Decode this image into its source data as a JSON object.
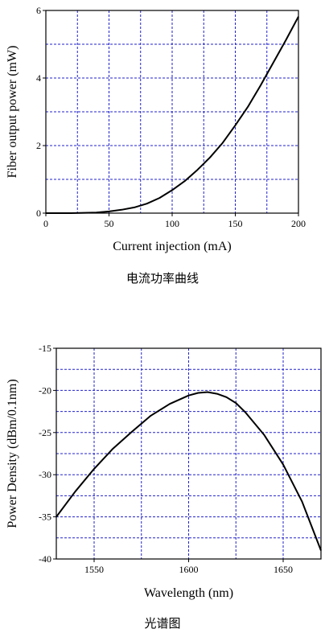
{
  "chart_data": [
    {
      "type": "line",
      "caption": "电流功率曲线",
      "xlabel": "Current injection (mA)",
      "ylabel": "Fiber output power (mW)",
      "xlim": [
        0,
        200
      ],
      "ylim": [
        0,
        6
      ],
      "xticks": [
        0,
        50,
        100,
        150,
        200
      ],
      "yticks": [
        0,
        2,
        4,
        6
      ],
      "grid": true,
      "grid_color": "#2222cc",
      "line_color": "#000000",
      "series": [
        {
          "x": [
            0,
            10,
            20,
            30,
            40,
            50,
            60,
            70,
            80,
            90,
            100,
            110,
            120,
            130,
            140,
            150,
            160,
            170,
            180,
            190,
            200
          ],
          "y": [
            0.0,
            0.0,
            0.0,
            0.01,
            0.02,
            0.05,
            0.1,
            0.17,
            0.28,
            0.45,
            0.68,
            0.95,
            1.28,
            1.65,
            2.08,
            2.6,
            3.15,
            3.78,
            4.45,
            5.12,
            5.82
          ]
        }
      ]
    },
    {
      "type": "line",
      "caption": "光谱图",
      "xlabel": "Wavelength (nm)",
      "ylabel": "Power Density (dBm/0.1nm)",
      "xlim": [
        1530,
        1670
      ],
      "ylim": [
        -40,
        -15
      ],
      "xticks": [
        1550,
        1600,
        1650
      ],
      "yticks": [
        -40,
        -35,
        -30,
        -25,
        -20,
        -15
      ],
      "grid": true,
      "grid_color": "#2222cc",
      "line_color": "#000000",
      "series": [
        {
          "x": [
            1530,
            1540,
            1550,
            1560,
            1570,
            1580,
            1590,
            1600,
            1605,
            1610,
            1615,
            1620,
            1625,
            1630,
            1640,
            1650,
            1660,
            1670
          ],
          "y": [
            -35.0,
            -32.0,
            -29.3,
            -26.9,
            -24.9,
            -23.0,
            -21.6,
            -20.6,
            -20.3,
            -20.2,
            -20.4,
            -20.8,
            -21.5,
            -22.6,
            -25.3,
            -28.8,
            -33.2,
            -39.0
          ]
        }
      ]
    }
  ]
}
